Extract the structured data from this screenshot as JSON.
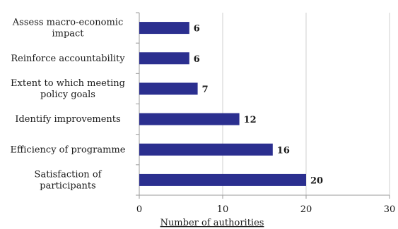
{
  "chart_data": {
    "type": "bar",
    "orientation": "horizontal",
    "categories": [
      [
        "Assess macro-economic",
        "impact"
      ],
      [
        "Reinforce accountability"
      ],
      [
        "Extent to which meeting",
        "policy goals"
      ],
      [
        "Identify improvements"
      ],
      [
        "Efficiency of programme"
      ],
      [
        "Satisfaction of",
        "participants"
      ]
    ],
    "values": [
      6,
      6,
      7,
      12,
      16,
      20
    ],
    "data_labels": [
      "6",
      "6",
      "7",
      "12",
      "16",
      "20"
    ],
    "xlabel": "Number of  authorities",
    "ylabel": "",
    "xlim": [
      0,
      30
    ],
    "xticks": [
      "0",
      "10",
      "20",
      "30"
    ],
    "grid": "vertical",
    "bar_color": "#2b2f8f",
    "grid_color": "#cfcfcf"
  }
}
